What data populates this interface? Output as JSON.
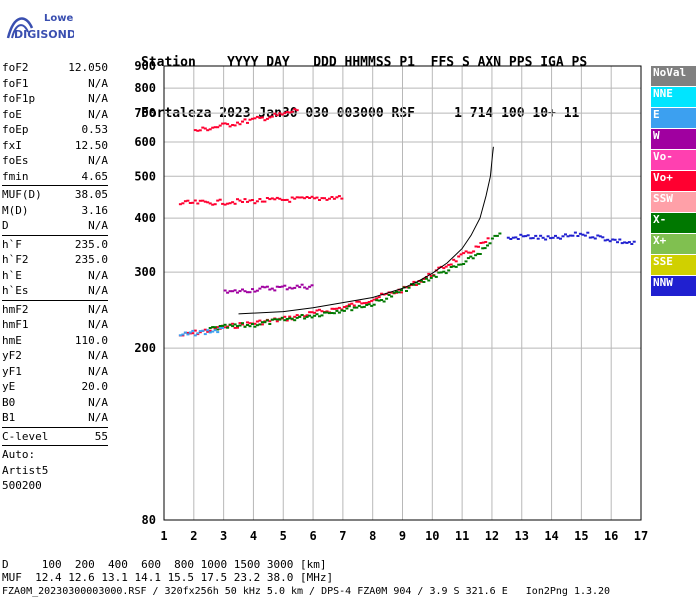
{
  "logo": {
    "line1": "Lowell",
    "line2": "DIGISONDE"
  },
  "header": {
    "labels": [
      "Station",
      "YYYY",
      "DAY",
      "DDD",
      "HHMMSS",
      "P1",
      "FFS",
      "S",
      "AXN",
      "PPS",
      "IGA",
      "PS"
    ],
    "values": [
      "Fortaleza",
      "2023",
      "Jan30",
      "030",
      "003000",
      "RSF",
      "1",
      "714",
      "100",
      "10+",
      "11"
    ]
  },
  "params": {
    "group1": [
      {
        "name": "foF2",
        "value": "12.050"
      },
      {
        "name": "foF1",
        "value": "N/A"
      },
      {
        "name": "foF1p",
        "value": "N/A"
      },
      {
        "name": "foE",
        "value": "N/A"
      },
      {
        "name": "foEp",
        "value": "0.53"
      },
      {
        "name": "fxI",
        "value": "12.50"
      },
      {
        "name": "foEs",
        "value": "N/A"
      },
      {
        "name": "fmin",
        "value": "4.65"
      }
    ],
    "group2": [
      {
        "name": "MUF(D)",
        "value": "38.05"
      },
      {
        "name": "M(D)",
        "value": "3.16"
      },
      {
        "name": "D",
        "value": "N/A"
      }
    ],
    "group3": [
      {
        "name": "h`F",
        "value": "235.0"
      },
      {
        "name": "h`F2",
        "value": "235.0"
      },
      {
        "name": "h`E",
        "value": "N/A"
      },
      {
        "name": "h`Es",
        "value": "N/A"
      }
    ],
    "group4": [
      {
        "name": "hmF2",
        "value": "N/A"
      },
      {
        "name": "hmF1",
        "value": "N/A"
      },
      {
        "name": "hmE",
        "value": "110.0"
      },
      {
        "name": "yF2",
        "value": "N/A"
      },
      {
        "name": "yF1",
        "value": "N/A"
      },
      {
        "name": "yE",
        "value": "20.0"
      },
      {
        "name": "B0",
        "value": "N/A"
      },
      {
        "name": "B1",
        "value": "N/A"
      }
    ],
    "clevel": {
      "name": "C-level",
      "value": "55"
    },
    "auto": {
      "line1": "Auto:",
      "line2": "Artist5",
      "line3": "500200"
    }
  },
  "legend": [
    {
      "label": "NoVal",
      "color": "#808080"
    },
    {
      "label": "NNE",
      "color": "#00e5ff"
    },
    {
      "label": "E",
      "color": "#3ca0f0"
    },
    {
      "label": "W",
      "color": "#a000a0"
    },
    {
      "label": "Vo-",
      "color": "#ff40b0"
    },
    {
      "label": "Vo+",
      "color": "#ff0030"
    },
    {
      "label": "SSW",
      "color": "#ffa0a8"
    },
    {
      "label": "X-",
      "color": "#007800"
    },
    {
      "label": "X+",
      "color": "#80c050"
    },
    {
      "label": "SSE",
      "color": "#d0d000"
    },
    {
      "label": "NNW",
      "color": "#2020d0"
    }
  ],
  "footer": {
    "d_row": "D     100  200  400  600  800 1000 1500 3000 [km]",
    "muf_row": "MUF  12.4 12.6 13.1 14.1 15.5 17.5 23.2 38.0 [MHz]",
    "file_row": "FZA0M_20230300003000.RSF / 320fx256h 50 kHz 5.0 km / DPS-4 FZA0M 904 / 3.9 S 321.6 E   Ion2Png 1.3.20"
  },
  "chart_data": {
    "type": "scatter",
    "xlabel": "",
    "ylabel": "",
    "xlim": [
      1,
      17
    ],
    "ylim": [
      80,
      900
    ],
    "xticks": [
      1,
      2,
      3,
      4,
      5,
      6,
      7,
      8,
      9,
      10,
      11,
      12,
      13,
      14,
      15,
      16,
      17
    ],
    "yticks": [
      80,
      200,
      300,
      400,
      500,
      600,
      700,
      800,
      900
    ],
    "grid": true,
    "yscale": "log",
    "traces": [
      {
        "series": "Vo+",
        "color": "#ff0030",
        "x": [
          1.5,
          3,
          5,
          7,
          9,
          10,
          11,
          11.5,
          11.9
        ],
        "y": [
          215,
          225,
          235,
          250,
          275,
          300,
          330,
          345,
          360
        ]
      },
      {
        "series": "X-",
        "color": "#007800",
        "x": [
          2.5,
          4,
          6,
          8,
          10,
          11,
          11.8,
          12.3
        ],
        "y": [
          223,
          228,
          240,
          255,
          295,
          315,
          345,
          380
        ]
      },
      {
        "series": "W",
        "color": "#a000a0",
        "x": [
          3,
          4,
          5,
          6
        ],
        "y": [
          270,
          275,
          278,
          280
        ]
      },
      {
        "series": "Vo+",
        "color": "#ff0030",
        "x": [
          2,
          3,
          4,
          5,
          5.5
        ],
        "y": [
          640,
          660,
          680,
          700,
          720
        ]
      },
      {
        "series": "Vo+",
        "color": "#ff0030",
        "x": [
          1.5,
          3,
          4.5,
          6,
          7
        ],
        "y": [
          435,
          438,
          442,
          446,
          450
        ]
      },
      {
        "series": "NNW",
        "color": "#2020d0",
        "x": [
          12.5,
          13,
          14,
          15,
          16,
          16.8
        ],
        "y": [
          360,
          365,
          360,
          370,
          358,
          350
        ]
      },
      {
        "series": "E",
        "color": "#3ca0f0",
        "x": [
          1.5,
          2,
          2.5,
          3
        ],
        "y": [
          215,
          218,
          220,
          222
        ]
      }
    ],
    "curve": {
      "x": [
        3.5,
        5,
        6,
        7,
        8,
        9,
        9.5,
        10,
        10.5,
        11,
        11.3,
        11.6,
        11.8,
        11.95,
        12.02,
        12.05
      ],
      "y": [
        240,
        243,
        248,
        255,
        262,
        275,
        285,
        298,
        315,
        340,
        365,
        400,
        450,
        500,
        560,
        585
      ]
    }
  }
}
